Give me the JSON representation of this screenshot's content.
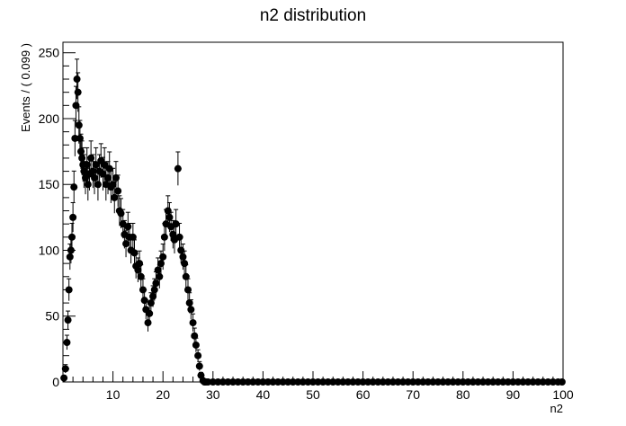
{
  "chart_data": {
    "type": "scatter",
    "style": "data points with error bars",
    "title": "n2 distribution",
    "xlabel": "n2",
    "ylabel": "Events / ( 0.099 )",
    "xlim": [
      0,
      100
    ],
    "ylim": [
      0,
      258
    ],
    "x_ticks": [
      10,
      20,
      30,
      40,
      50,
      60,
      70,
      80,
      90,
      100
    ],
    "y_ticks": [
      0,
      50,
      100,
      150,
      200,
      250
    ],
    "bin_width": 0.099,
    "grid": false,
    "legend": "none",
    "marker_color": "#000000",
    "points": [
      [
        0.2,
        3
      ],
      [
        0.5,
        10
      ],
      [
        0.8,
        30
      ],
      [
        1.0,
        47
      ],
      [
        1.2,
        70
      ],
      [
        1.4,
        95
      ],
      [
        1.6,
        100
      ],
      [
        1.8,
        110
      ],
      [
        2.0,
        125
      ],
      [
        2.2,
        148
      ],
      [
        2.4,
        185
      ],
      [
        2.6,
        210
      ],
      [
        2.8,
        230
      ],
      [
        3.0,
        220
      ],
      [
        3.2,
        195
      ],
      [
        3.4,
        185
      ],
      [
        3.6,
        175
      ],
      [
        3.8,
        170
      ],
      [
        4.0,
        165
      ],
      [
        4.2,
        160
      ],
      [
        4.5,
        155
      ],
      [
        4.8,
        165
      ],
      [
        5.0,
        150
      ],
      [
        5.3,
        158
      ],
      [
        5.6,
        170
      ],
      [
        6.0,
        160
      ],
      [
        6.3,
        155
      ],
      [
        6.6,
        165
      ],
      [
        7.0,
        150
      ],
      [
        7.3,
        160
      ],
      [
        7.6,
        168
      ],
      [
        8.0,
        158
      ],
      [
        8.3,
        165
      ],
      [
        8.6,
        150
      ],
      [
        9.0,
        155
      ],
      [
        9.3,
        162
      ],
      [
        9.6,
        148
      ],
      [
        10.0,
        150
      ],
      [
        10.3,
        140
      ],
      [
        10.6,
        155
      ],
      [
        11.0,
        145
      ],
      [
        11.3,
        130
      ],
      [
        11.6,
        128
      ],
      [
        12.0,
        120
      ],
      [
        12.3,
        112
      ],
      [
        12.6,
        105
      ],
      [
        13.0,
        118
      ],
      [
        13.3,
        110
      ],
      [
        13.6,
        100
      ],
      [
        14.0,
        110
      ],
      [
        14.3,
        98
      ],
      [
        14.6,
        88
      ],
      [
        15.0,
        85
      ],
      [
        15.3,
        90
      ],
      [
        15.6,
        80
      ],
      [
        16.0,
        70
      ],
      [
        16.3,
        62
      ],
      [
        16.6,
        55
      ],
      [
        17.0,
        45
      ],
      [
        17.3,
        52
      ],
      [
        17.6,
        60
      ],
      [
        18.0,
        65
      ],
      [
        18.3,
        70
      ],
      [
        18.6,
        75
      ],
      [
        19.0,
        85
      ],
      [
        19.3,
        80
      ],
      [
        19.6,
        90
      ],
      [
        20.0,
        95
      ],
      [
        20.3,
        110
      ],
      [
        20.6,
        120
      ],
      [
        21.0,
        130
      ],
      [
        21.3,
        125
      ],
      [
        21.6,
        118
      ],
      [
        22.0,
        112
      ],
      [
        22.3,
        108
      ],
      [
        22.6,
        120
      ],
      [
        23.0,
        162
      ],
      [
        23.3,
        110
      ],
      [
        23.6,
        100
      ],
      [
        24.0,
        95
      ],
      [
        24.3,
        90
      ],
      [
        24.6,
        80
      ],
      [
        25.0,
        70
      ],
      [
        25.3,
        60
      ],
      [
        25.6,
        55
      ],
      [
        26.0,
        45
      ],
      [
        26.3,
        35
      ],
      [
        26.6,
        28
      ],
      [
        27.0,
        20
      ],
      [
        27.3,
        12
      ],
      [
        27.6,
        5
      ],
      [
        28.0,
        1
      ],
      [
        28.3,
        0
      ],
      [
        28.6,
        0
      ],
      [
        29,
        0
      ],
      [
        30,
        0
      ],
      [
        31,
        0
      ],
      [
        32,
        0
      ],
      [
        33,
        0
      ],
      [
        34,
        0
      ],
      [
        35,
        0
      ],
      [
        36,
        0
      ],
      [
        37,
        0
      ],
      [
        38,
        0
      ],
      [
        39,
        0
      ],
      [
        40,
        0
      ],
      [
        41,
        0
      ],
      [
        42,
        0
      ],
      [
        43,
        0
      ],
      [
        44,
        0
      ],
      [
        45,
        0
      ],
      [
        46,
        0
      ],
      [
        47,
        0
      ],
      [
        48,
        0
      ],
      [
        49,
        0
      ],
      [
        50,
        0
      ],
      [
        51,
        0
      ],
      [
        52,
        0
      ],
      [
        53,
        0
      ],
      [
        54,
        0
      ],
      [
        55,
        0
      ],
      [
        56,
        0
      ],
      [
        57,
        0
      ],
      [
        58,
        0
      ],
      [
        59,
        0
      ],
      [
        60,
        0
      ],
      [
        61,
        0
      ],
      [
        62,
        0
      ],
      [
        63,
        0
      ],
      [
        64,
        0
      ],
      [
        65,
        0
      ],
      [
        66,
        0
      ],
      [
        67,
        0
      ],
      [
        68,
        0
      ],
      [
        69,
        0
      ],
      [
        70,
        0
      ],
      [
        71,
        0
      ],
      [
        72,
        0
      ],
      [
        73,
        0
      ],
      [
        74,
        0
      ],
      [
        75,
        0
      ],
      [
        76,
        0
      ],
      [
        77,
        0
      ],
      [
        78,
        0
      ],
      [
        79,
        0
      ],
      [
        80,
        0
      ],
      [
        81,
        0
      ],
      [
        82,
        0
      ],
      [
        83,
        0
      ],
      [
        84,
        0
      ],
      [
        85,
        0
      ],
      [
        86,
        0
      ],
      [
        87,
        0
      ],
      [
        88,
        0
      ],
      [
        89,
        0
      ],
      [
        90,
        0
      ],
      [
        91,
        0
      ],
      [
        92,
        0
      ],
      [
        93,
        0
      ],
      [
        94,
        0
      ],
      [
        95,
        0
      ],
      [
        96,
        0
      ],
      [
        97,
        0
      ],
      [
        98,
        0
      ],
      [
        99,
        0
      ],
      [
        99.8,
        0
      ]
    ]
  }
}
